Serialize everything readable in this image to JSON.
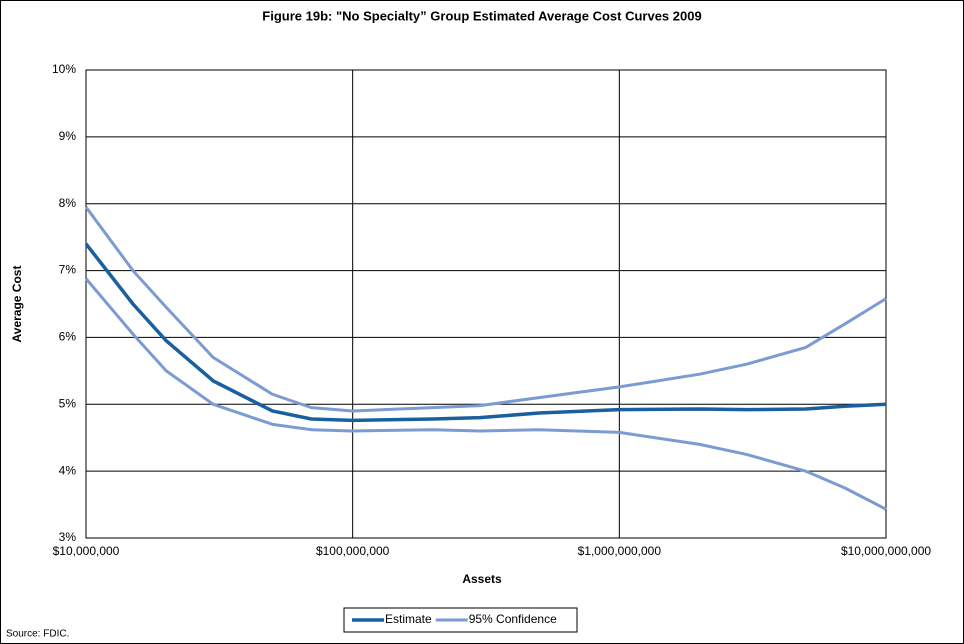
{
  "chart_data": {
    "type": "line",
    "title": "Figure 19b: \"No Specialty” Group Estimated Average Cost Curves 2009",
    "x_label": "Assets",
    "y_label": "Average Cost",
    "source": "Source: FDIC.",
    "x": [
      10000000,
      15000000,
      20000000,
      30000000,
      50000000,
      70000000,
      100000000,
      200000000,
      300000000,
      500000000,
      1000000000,
      2000000000,
      3000000000,
      5000000000,
      7000000000,
      10000000000
    ],
    "series": [
      {
        "name": "Estimate",
        "color": "#1a5f9e",
        "width": 3.5,
        "values": [
          7.4,
          6.5,
          5.95,
          5.35,
          4.9,
          4.78,
          4.76,
          4.78,
          4.8,
          4.87,
          4.92,
          4.93,
          4.92,
          4.93,
          4.97,
          5.0
        ]
      },
      {
        "name": "95% Confidence",
        "color": "#7b9bd2",
        "width": 3,
        "values": [
          7.95,
          7.0,
          6.45,
          5.7,
          5.15,
          4.95,
          4.9,
          4.95,
          4.98,
          5.1,
          5.26,
          5.45,
          5.6,
          5.85,
          6.2,
          6.58
        ],
        "lower": [
          6.88,
          6.05,
          5.5,
          5.0,
          4.7,
          4.62,
          4.6,
          4.62,
          4.6,
          4.62,
          4.58,
          4.4,
          4.25,
          4.0,
          3.75,
          3.43
        ]
      }
    ],
    "xscale": "log",
    "xlim": [
      10000000,
      10000000000
    ],
    "xticks": [
      {
        "value": 10000000,
        "label": "$10,000,000"
      },
      {
        "value": 100000000,
        "label": "$100,000,000"
      },
      {
        "value": 1000000000,
        "label": "$1,000,000,000"
      },
      {
        "value": 10000000000,
        "label": "$10,000,000,000"
      }
    ],
    "ylim": [
      3,
      10
    ],
    "yticks": [
      {
        "value": 3,
        "label": "3%"
      },
      {
        "value": 4,
        "label": "4%"
      },
      {
        "value": 5,
        "label": "5%"
      },
      {
        "value": 6,
        "label": "6%"
      },
      {
        "value": 7,
        "label": "7%"
      },
      {
        "value": 8,
        "label": "8%"
      },
      {
        "value": 9,
        "label": "9%"
      },
      {
        "value": 10,
        "label": "10%"
      }
    ],
    "grid": true,
    "legend": "bottom"
  }
}
